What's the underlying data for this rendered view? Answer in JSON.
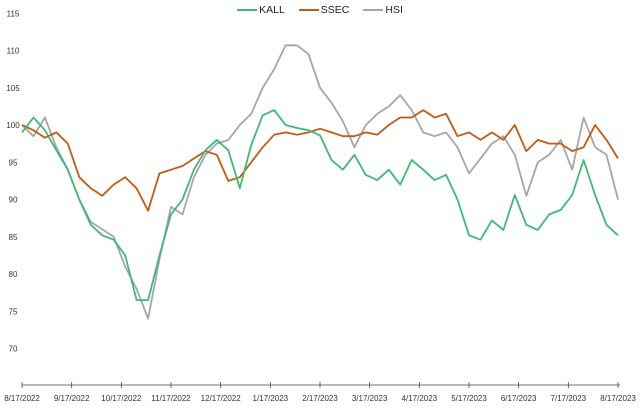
{
  "chart_data": {
    "type": "line",
    "title": "",
    "xlabel": "",
    "ylabel": "",
    "ylim": [
      65,
      115
    ],
    "yticks": [
      70,
      75,
      80,
      85,
      90,
      95,
      100,
      105,
      110,
      115
    ],
    "xtick_labels": [
      "8/17/2022",
      "9/17/2022",
      "10/17/2022",
      "11/17/2022",
      "12/17/2022",
      "1/17/2023",
      "2/17/2023",
      "3/17/2023",
      "4/17/2023",
      "5/17/2023",
      "6/17/2023",
      "7/17/2023",
      "8/17/2023"
    ],
    "x_frequency": "weekly (53 points, 8/17/2022 to 8/17/2023)",
    "grid": false,
    "legend_position": "top-center",
    "series": [
      {
        "name": "KALL",
        "color": "#3dba78",
        "values": [
          99,
          101,
          99.3,
          96.6,
          94,
          90,
          86.6,
          85.2,
          84.6,
          82.5,
          76.5,
          76.5,
          82.5,
          88,
          90,
          94,
          96.6,
          98,
          96.6,
          91.5,
          97.3,
          101.3,
          102,
          100,
          99.6,
          99.3,
          98.6,
          95.3,
          94,
          96,
          93.3,
          92.6,
          94,
          92,
          95.3,
          94,
          92.6,
          93.3,
          90,
          85.2,
          84.6,
          87.2,
          85.9,
          90.6,
          86.6,
          85.9,
          88,
          88.6,
          90.6,
          95.3,
          90.6,
          86.6,
          85.2
        ]
      },
      {
        "name": "SSEC",
        "color": "#c55a11",
        "values": [
          100,
          99.3,
          98.3,
          99,
          97.5,
          93,
          91.5,
          90.5,
          92,
          93,
          91.5,
          88.5,
          93.5,
          94,
          94.5,
          95.5,
          96.5,
          96,
          92.5,
          93,
          95,
          97,
          98.7,
          99,
          98.7,
          99,
          99.5,
          99,
          98.5,
          98.5,
          99,
          98.7,
          100,
          101,
          101,
          102,
          101,
          101.5,
          98.5,
          99,
          98,
          99,
          98,
          100,
          96.5,
          98,
          97.5,
          97.5,
          96.5,
          97,
          100,
          98,
          95.5
        ]
      },
      {
        "name": "HSI",
        "color": "#a6a6a6",
        "values": [
          100,
          98.5,
          101,
          97,
          94,
          90,
          87,
          86,
          85,
          81,
          78,
          74,
          82,
          89,
          88,
          93,
          96,
          97.5,
          98,
          100,
          101.5,
          105,
          107.5,
          110.7,
          110.7,
          109.5,
          105,
          103,
          100.5,
          97,
          100,
          101.5,
          102.5,
          104,
          102,
          99,
          98.5,
          99,
          97,
          93.5,
          95.5,
          97.5,
          98.5,
          96,
          90.5,
          95,
          96,
          98,
          94,
          101,
          97,
          96,
          90
        ]
      }
    ]
  },
  "legend": {
    "items": [
      {
        "label": "KALL",
        "color": "#3dba78"
      },
      {
        "label": "SSEC",
        "color": "#c55a11"
      },
      {
        "label": "HSI",
        "color": "#a6a6a6"
      }
    ]
  },
  "axis": {
    "y_labels": [
      "70",
      "75",
      "80",
      "85",
      "90",
      "95",
      "100",
      "105",
      "110",
      "115"
    ],
    "x_labels": [
      "8/17/2022",
      "9/17/2022",
      "10/17/2022",
      "11/17/2022",
      "12/17/2022",
      "1/17/2023",
      "2/17/2023",
      "3/17/2023",
      "4/17/2023",
      "5/17/2023",
      "6/17/2023",
      "7/17/2023",
      "8/17/2023"
    ]
  }
}
